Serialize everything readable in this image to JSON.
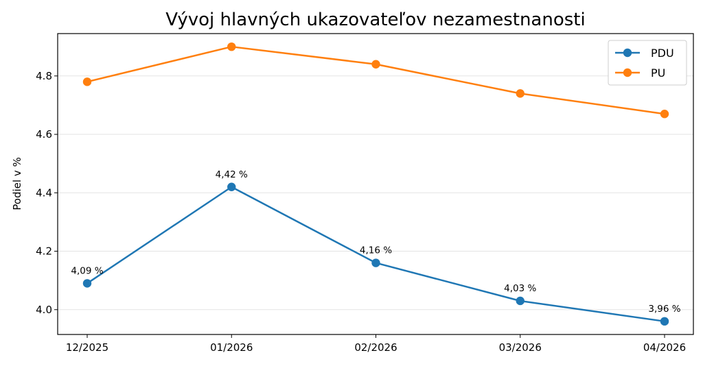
{
  "chart_data": {
    "type": "line",
    "title": "Vývoj hlavných ukazovateľov nezamestnanosti",
    "xlabel": "",
    "ylabel": "Podiel v %",
    "categories": [
      "12/2025",
      "01/2026",
      "02/2026",
      "03/2026",
      "04/2026"
    ],
    "ylim": [
      3.915,
      4.945
    ],
    "yticks": [
      4.0,
      4.2,
      4.4,
      4.6,
      4.8
    ],
    "ytick_labels": [
      "4.0",
      "4.2",
      "4.4",
      "4.6",
      "4.8"
    ],
    "grid": "horizontal",
    "legend": "top-right",
    "series": [
      {
        "name": "PDU",
        "color": "#1f77b4",
        "values": [
          4.09,
          4.42,
          4.16,
          4.03,
          3.96
        ],
        "labels": [
          "4,09 %",
          "4,42 %",
          "4,16 %",
          "4,03 %",
          "3,96 %"
        ]
      },
      {
        "name": "PU",
        "color": "#ff7f0e",
        "values": [
          4.78,
          4.9,
          4.84,
          4.74,
          4.67
        ]
      }
    ]
  }
}
